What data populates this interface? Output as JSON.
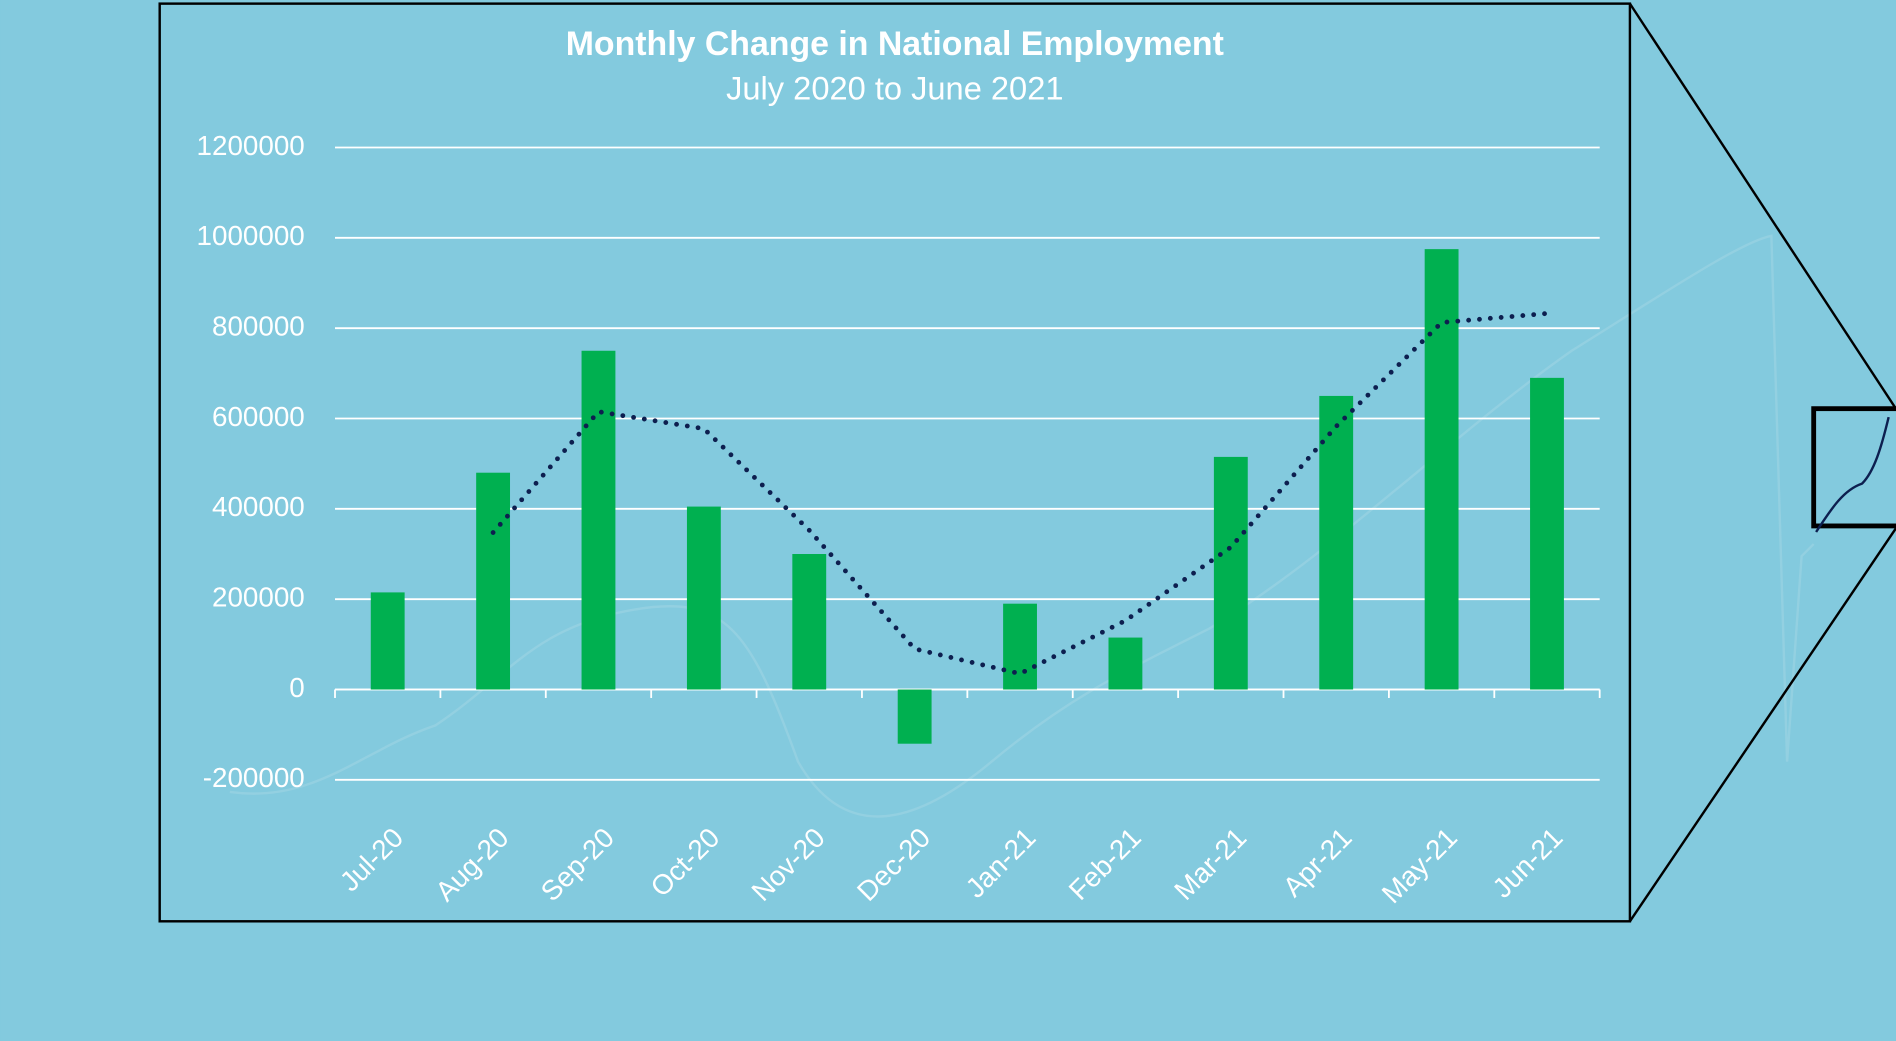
{
  "chart_data": {
    "type": "bar",
    "title": "Monthly Change in National Employment",
    "subtitle": "July 2020 to June 2021",
    "categories": [
      "Jul-20",
      "Aug-20",
      "Sep-20",
      "Oct-20",
      "Nov-20",
      "Dec-20",
      "Jan-21",
      "Feb-21",
      "Mar-21",
      "Apr-21",
      "May-21",
      "Jun-21"
    ],
    "series": [
      {
        "type": "bar",
        "color": "#00b050",
        "values": [
          215000,
          480000,
          750000,
          405000,
          300000,
          -120000,
          190000,
          115000,
          515000,
          650000,
          975000,
          690000
        ]
      },
      {
        "type": "line",
        "style": "dotted",
        "color": "#0d1f4f",
        "values": [
          null,
          347500,
          615000,
          577500,
          352500,
          90000,
          35000,
          152500,
          315000,
          582500,
          812500,
          832500
        ]
      }
    ],
    "ylim": [
      -200000,
      1200000
    ],
    "yticks": [
      -200000,
      0,
      200000,
      400000,
      600000,
      800000,
      1000000,
      1200000
    ],
    "grid": true
  }
}
